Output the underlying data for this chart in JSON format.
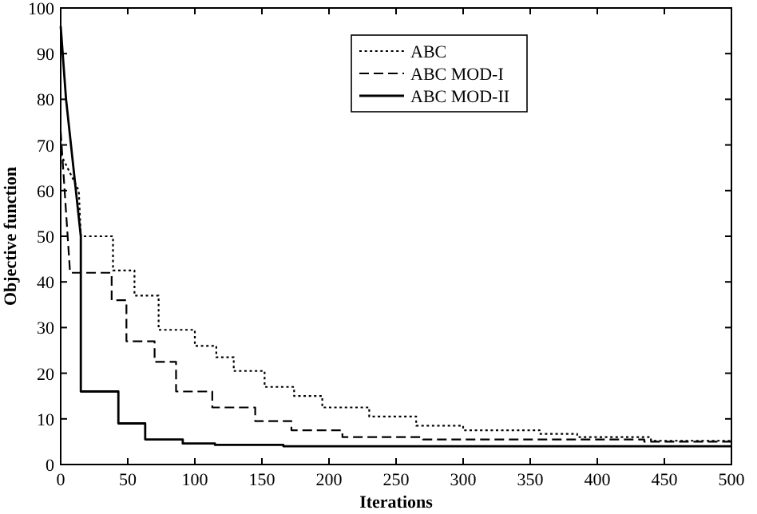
{
  "chart_data": {
    "type": "line",
    "xlabel": "Iterations",
    "ylabel": "Objective function",
    "xlim": [
      0,
      500
    ],
    "ylim": [
      0,
      100
    ],
    "xticks": [
      0,
      50,
      100,
      150,
      200,
      250,
      300,
      350,
      400,
      450,
      500
    ],
    "yticks": [
      0,
      10,
      20,
      30,
      40,
      50,
      60,
      70,
      80,
      90,
      100
    ],
    "grid": false,
    "legend": "top",
    "marker": "none",
    "series": [
      {
        "name": "ABC",
        "color": "#000000",
        "line_style": "dotted",
        "x": [
          0,
          13.5,
          15,
          39,
          39,
          55,
          55,
          73,
          73,
          100,
          100,
          116,
          116,
          129,
          129,
          152,
          152,
          174,
          174,
          195,
          195,
          230,
          230,
          265,
          265,
          300,
          300,
          357,
          357,
          385,
          385,
          440,
          440,
          500
        ],
        "values": [
          68,
          60,
          50,
          50,
          42.5,
          42.5,
          37,
          37,
          29.5,
          29.5,
          26,
          26,
          23.5,
          23.5,
          20.5,
          20.5,
          17,
          17,
          15,
          15,
          12.5,
          12.5,
          10.5,
          10.5,
          8.5,
          8.5,
          7.5,
          7.5,
          6.7,
          6.7,
          6,
          6,
          5.2,
          5.2
        ]
      },
      {
        "name": "ABC MOD-I",
        "color": "#000000",
        "line_style": "dashed",
        "x": [
          0,
          7,
          38,
          38,
          49,
          49,
          70,
          70,
          86,
          86,
          113,
          113,
          145,
          145,
          172,
          172,
          210,
          210,
          270,
          270,
          435,
          435,
          500
        ],
        "values": [
          73,
          42,
          42,
          36,
          36,
          27,
          27,
          22.5,
          22.5,
          16,
          16,
          12.5,
          12.5,
          9.5,
          9.5,
          7.5,
          7.5,
          6,
          6,
          5.5,
          5.5,
          5,
          5
        ]
      },
      {
        "name": "ABC MOD-II",
        "color": "#000000",
        "line_style": "solid",
        "x": [
          0,
          4,
          15,
          15,
          43,
          43,
          63,
          63,
          91,
          91,
          115,
          115,
          166,
          166,
          500
        ],
        "values": [
          96,
          80,
          50,
          16,
          16,
          9,
          9,
          5.5,
          5.5,
          4.6,
          4.6,
          4.3,
          4.3,
          4,
          4
        ]
      }
    ]
  }
}
